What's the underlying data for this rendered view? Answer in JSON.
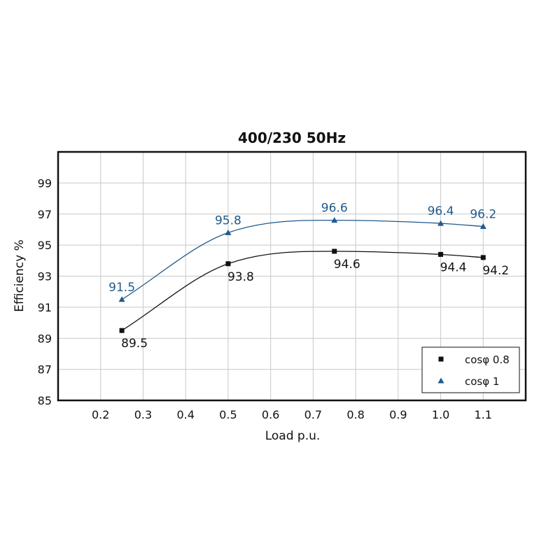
{
  "chart_data": {
    "type": "line",
    "title": "400/230 50Hz",
    "xlabel": "Load p.u.",
    "ylabel": "Efficiency %",
    "xlim": [
      0.1,
      1.2
    ],
    "ylim": [
      85,
      101
    ],
    "x_ticks": [
      0.2,
      0.3,
      0.4,
      0.5,
      0.6,
      0.7,
      0.8,
      0.9,
      1.0,
      1.1
    ],
    "x_tick_labels": [
      "0.2",
      "0.3",
      "0.4",
      "0.5",
      "0.6",
      "0.7",
      "0.8",
      "0.9",
      "1.0",
      "1.1"
    ],
    "y_ticks": [
      85,
      87,
      89,
      91,
      93,
      95,
      97,
      99
    ],
    "y_tick_labels": [
      "85",
      "87",
      "89",
      "91",
      "93",
      "95",
      "97",
      "99"
    ],
    "grid": true,
    "legend_position": "bottom-right",
    "series": [
      {
        "name": "cosφ 0.8",
        "marker": "square",
        "color": "#111111",
        "x": [
          0.25,
          0.5,
          0.75,
          1.0,
          1.1
        ],
        "y": [
          89.5,
          93.8,
          94.6,
          94.4,
          94.2
        ],
        "labels": [
          "89.5",
          "93.8",
          "94.6",
          "94.4",
          "94.2"
        ]
      },
      {
        "name": "cosφ 1",
        "marker": "triangle",
        "color": "#1f5a8c",
        "x": [
          0.25,
          0.5,
          0.75,
          1.0,
          1.1
        ],
        "y": [
          91.5,
          95.8,
          96.6,
          96.4,
          96.2
        ],
        "labels": [
          "91.5",
          "95.8",
          "96.6",
          "96.4",
          "96.2"
        ]
      }
    ]
  }
}
